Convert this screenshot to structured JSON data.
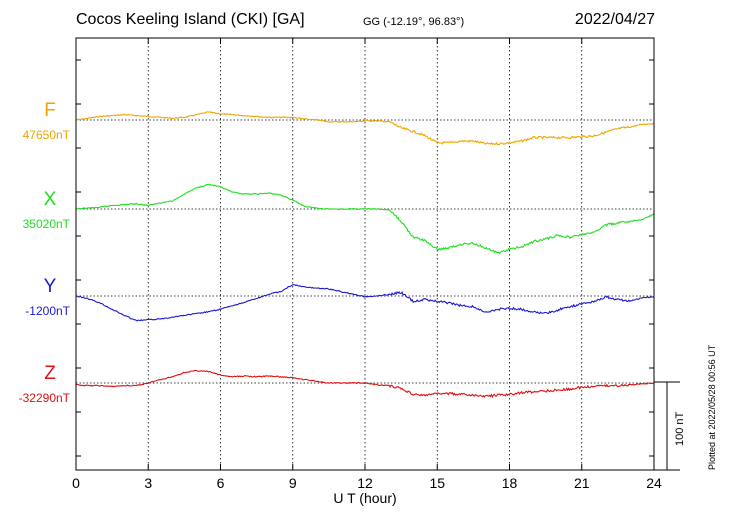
{
  "header": {
    "station": "Cocos Keeling Island (CKI)  [GA]",
    "coords": "GG (-12.19°,  96.83°)",
    "date": "2022/04/27"
  },
  "scale_label": "100 nT",
  "plotted_note": "Plotted at 2022/05/28 00:56 UT",
  "chart_data": {
    "type": "line",
    "title": "Cocos Keeling Island (CKI)  [GA]",
    "xlabel": "U T (hour)",
    "xlim": [
      0,
      24
    ],
    "xticks": [
      0,
      3,
      6,
      9,
      12,
      15,
      18,
      21,
      24
    ],
    "grid": true,
    "scale_bar_nT": 100,
    "series": [
      {
        "name": "F",
        "baseline_label": "47650nT",
        "baseline_nT": 47650,
        "color": "#f0a500",
        "points": [
          [
            0,
            0
          ],
          [
            0.5,
            2
          ],
          [
            1,
            4
          ],
          [
            1.5,
            5
          ],
          [
            2,
            6
          ],
          [
            2.5,
            5
          ],
          [
            3,
            4
          ],
          [
            3.5,
            3
          ],
          [
            4,
            2
          ],
          [
            4.5,
            3
          ],
          [
            5,
            6
          ],
          [
            5.5,
            9
          ],
          [
            6,
            7
          ],
          [
            6.5,
            6
          ],
          [
            7,
            5
          ],
          [
            7.5,
            4
          ],
          [
            8,
            3
          ],
          [
            8.5,
            3
          ],
          [
            9,
            3
          ],
          [
            9.5,
            1
          ],
          [
            10,
            0
          ],
          [
            10.5,
            -2
          ],
          [
            11,
            -2
          ],
          [
            11.5,
            -2
          ],
          [
            12,
            -1
          ],
          [
            12.5,
            -1
          ],
          [
            13,
            -2
          ],
          [
            13.5,
            -9
          ],
          [
            14,
            -13
          ],
          [
            14.5,
            -18
          ],
          [
            15,
            -26
          ],
          [
            15.5,
            -26
          ],
          [
            16,
            -24
          ],
          [
            16.5,
            -24
          ],
          [
            17,
            -27
          ],
          [
            17.5,
            -27
          ],
          [
            18,
            -26
          ],
          [
            18.5,
            -24
          ],
          [
            19,
            -20
          ],
          [
            19.5,
            -20
          ],
          [
            20,
            -20
          ],
          [
            20.5,
            -20
          ],
          [
            21,
            -19
          ],
          [
            21.5,
            -18
          ],
          [
            22,
            -14
          ],
          [
            22.5,
            -10
          ],
          [
            23,
            -8
          ],
          [
            23.5,
            -5
          ],
          [
            24,
            -4
          ]
        ]
      },
      {
        "name": "X",
        "baseline_label": "35020nT",
        "baseline_nT": 35020,
        "color": "#22dd22",
        "points": [
          [
            0,
            0
          ],
          [
            0.5,
            1
          ],
          [
            1,
            2
          ],
          [
            1.5,
            4
          ],
          [
            2,
            5
          ],
          [
            2.5,
            6
          ],
          [
            3,
            4
          ],
          [
            3.5,
            7
          ],
          [
            4,
            9
          ],
          [
            4.5,
            17
          ],
          [
            5,
            24
          ],
          [
            5.5,
            28
          ],
          [
            6,
            25
          ],
          [
            6.5,
            19
          ],
          [
            7,
            17
          ],
          [
            7.5,
            17
          ],
          [
            8,
            18
          ],
          [
            8.5,
            16
          ],
          [
            9,
            10
          ],
          [
            9.5,
            3
          ],
          [
            10,
            1
          ],
          [
            10.5,
            0
          ],
          [
            11,
            0
          ],
          [
            11.5,
            0
          ],
          [
            12,
            0
          ],
          [
            12.5,
            0
          ],
          [
            13,
            -1
          ],
          [
            13.5,
            -14
          ],
          [
            14,
            -32
          ],
          [
            14.5,
            -36
          ],
          [
            15,
            -46
          ],
          [
            15.5,
            -44
          ],
          [
            16,
            -40
          ],
          [
            16.5,
            -39
          ],
          [
            17,
            -44
          ],
          [
            17.5,
            -50
          ],
          [
            18,
            -46
          ],
          [
            18.5,
            -43
          ],
          [
            19,
            -37
          ],
          [
            19.5,
            -34
          ],
          [
            20,
            -30
          ],
          [
            20.5,
            -32
          ],
          [
            21,
            -29
          ],
          [
            21.5,
            -27
          ],
          [
            22,
            -18
          ],
          [
            22.5,
            -16
          ],
          [
            23,
            -14
          ],
          [
            23.5,
            -12
          ],
          [
            24,
            -6
          ]
        ]
      },
      {
        "name": "Y",
        "baseline_label": "-1200nT",
        "baseline_nT": -1200,
        "color": "#1a1acc",
        "points": [
          [
            0,
            0
          ],
          [
            0.5,
            -3
          ],
          [
            1,
            -8
          ],
          [
            1.5,
            -15
          ],
          [
            2,
            -22
          ],
          [
            2.5,
            -28
          ],
          [
            3,
            -27
          ],
          [
            3.5,
            -26
          ],
          [
            4,
            -24
          ],
          [
            4.5,
            -22
          ],
          [
            5,
            -20
          ],
          [
            5.5,
            -18
          ],
          [
            6,
            -15
          ],
          [
            6.5,
            -11
          ],
          [
            7,
            -7
          ],
          [
            7.5,
            -3
          ],
          [
            8,
            2
          ],
          [
            8.5,
            5
          ],
          [
            9,
            13
          ],
          [
            9.5,
            10
          ],
          [
            10,
            9
          ],
          [
            10.5,
            8
          ],
          [
            11,
            5
          ],
          [
            11.5,
            2
          ],
          [
            12,
            -1
          ],
          [
            12.5,
            0
          ],
          [
            13,
            2
          ],
          [
            13.5,
            4
          ],
          [
            14,
            -6
          ],
          [
            14.5,
            -4
          ],
          [
            15,
            -6
          ],
          [
            15.5,
            -8
          ],
          [
            16,
            -11
          ],
          [
            16.5,
            -12
          ],
          [
            17,
            -19
          ],
          [
            17.5,
            -15
          ],
          [
            18,
            -14
          ],
          [
            18.5,
            -15
          ],
          [
            19,
            -18
          ],
          [
            19.5,
            -20
          ],
          [
            20,
            -16
          ],
          [
            20.5,
            -12
          ],
          [
            21,
            -9
          ],
          [
            21.5,
            -6
          ],
          [
            22,
            -1
          ],
          [
            22.5,
            -4
          ],
          [
            23,
            -6
          ],
          [
            23.5,
            -2
          ],
          [
            24,
            -1
          ]
        ]
      },
      {
        "name": "Z",
        "baseline_label": "-32290nT",
        "baseline_nT": -32290,
        "color": "#dd1111",
        "points": [
          [
            0,
            -2
          ],
          [
            0.5,
            -3
          ],
          [
            1,
            -3
          ],
          [
            1.5,
            -4
          ],
          [
            2,
            -3
          ],
          [
            2.5,
            -3
          ],
          [
            3,
            0
          ],
          [
            3.5,
            4
          ],
          [
            4,
            7
          ],
          [
            4.5,
            12
          ],
          [
            5,
            14
          ],
          [
            5.5,
            13
          ],
          [
            6,
            9
          ],
          [
            6.5,
            7
          ],
          [
            7,
            8
          ],
          [
            7.5,
            7
          ],
          [
            8,
            8
          ],
          [
            8.5,
            7
          ],
          [
            9,
            6
          ],
          [
            9.5,
            4
          ],
          [
            10,
            2
          ],
          [
            10.5,
            0
          ],
          [
            11,
            0
          ],
          [
            11.5,
            0
          ],
          [
            12,
            0
          ],
          [
            12.5,
            -2
          ],
          [
            13,
            -3
          ],
          [
            13.5,
            -6
          ],
          [
            14,
            -13
          ],
          [
            14.5,
            -14
          ],
          [
            15,
            -12
          ],
          [
            15.5,
            -12
          ],
          [
            16,
            -13
          ],
          [
            16.5,
            -14
          ],
          [
            17,
            -15
          ],
          [
            17.5,
            -14
          ],
          [
            18,
            -13
          ],
          [
            18.5,
            -11
          ],
          [
            19,
            -10
          ],
          [
            19.5,
            -9
          ],
          [
            20,
            -8
          ],
          [
            20.5,
            -7
          ],
          [
            21,
            -5
          ],
          [
            21.5,
            -4
          ],
          [
            22,
            -3
          ],
          [
            22.5,
            -3
          ],
          [
            23,
            -2
          ],
          [
            23.5,
            -1
          ],
          [
            24,
            0
          ]
        ]
      }
    ]
  }
}
